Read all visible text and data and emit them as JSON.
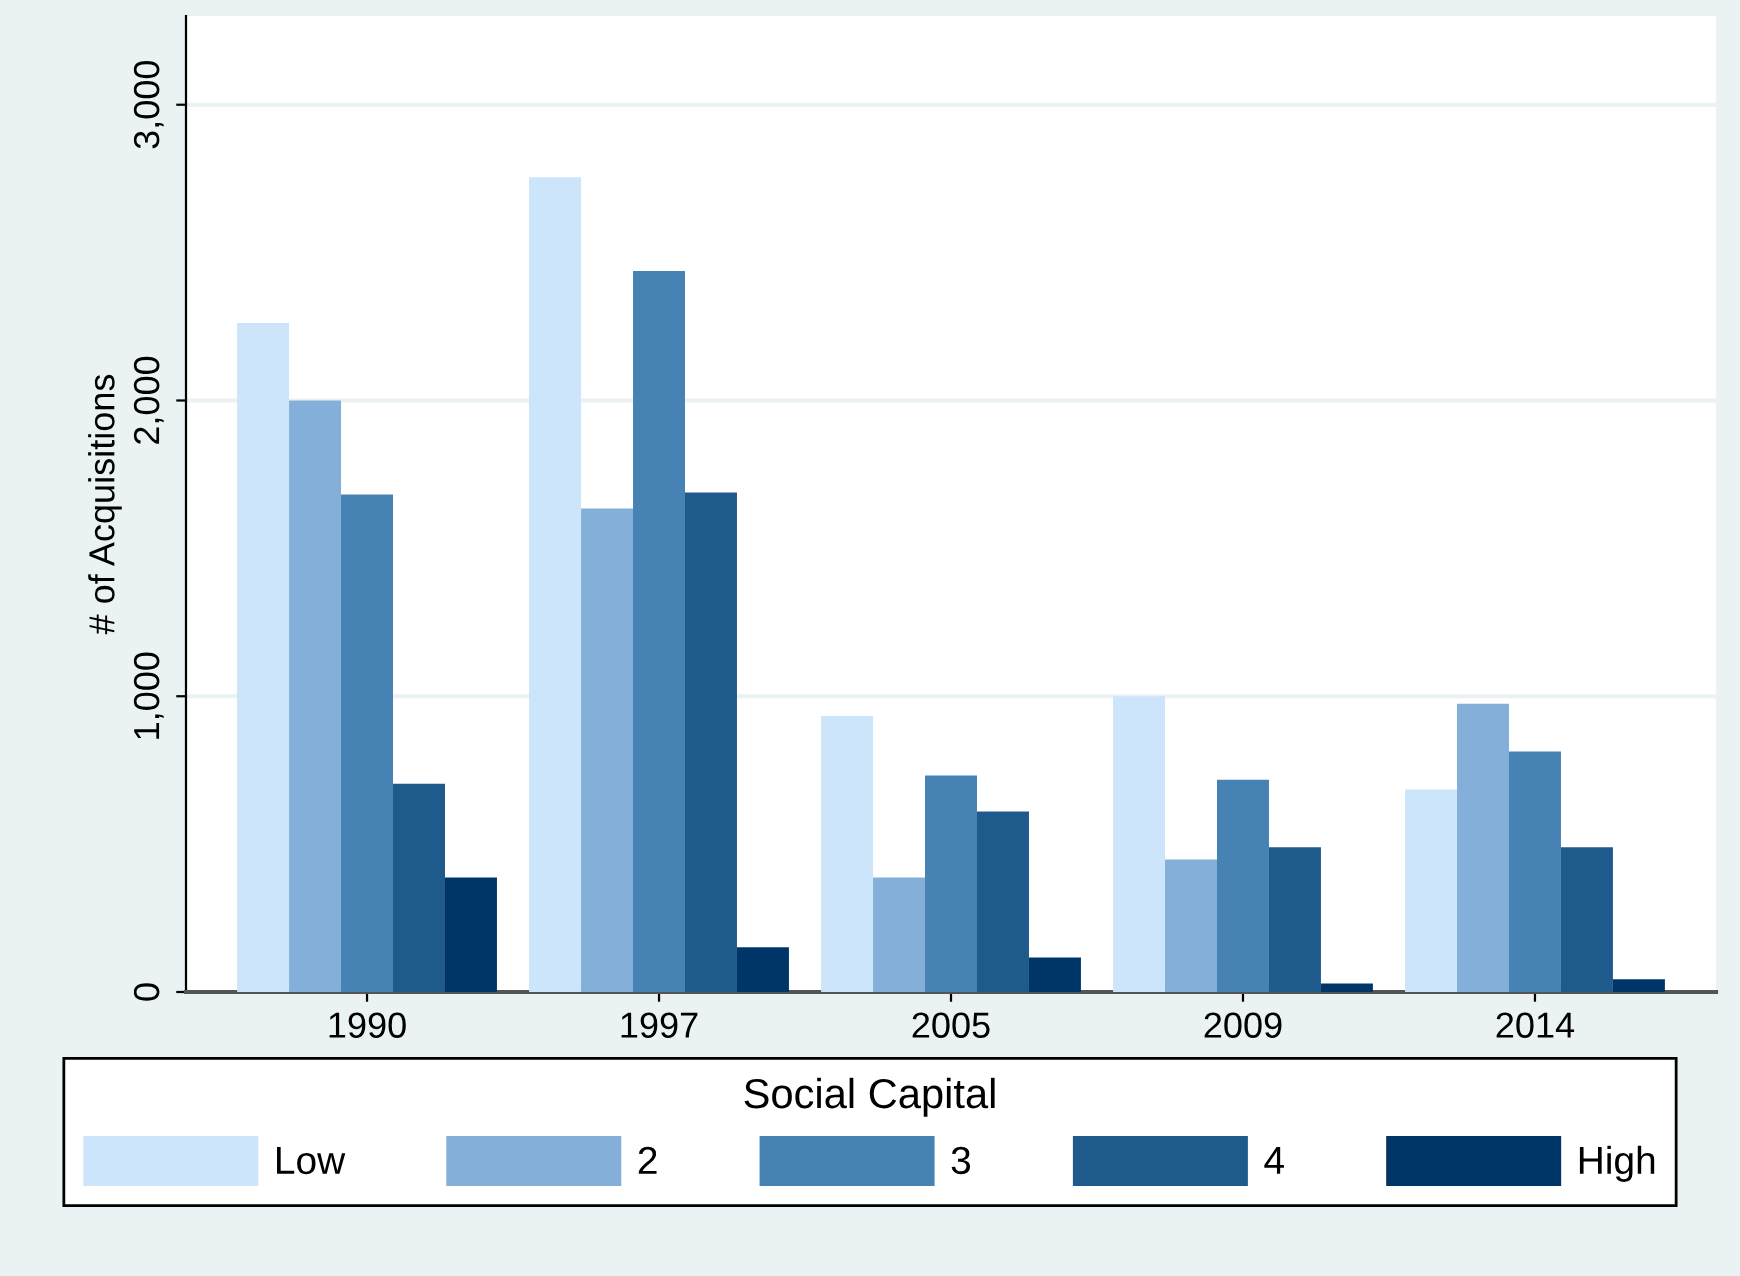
{
  "chart_data": {
    "type": "bar",
    "ylabel": "# of Acquisitions",
    "legend_title": "Social Capital",
    "categories": [
      "1990",
      "1997",
      "2005",
      "2009",
      "2014"
    ],
    "series": [
      {
        "name": "Low",
        "color": "#cce5fb",
        "values": [
          2262,
          2755,
          933,
          1000,
          685
        ]
      },
      {
        "name": "2",
        "color": "#84afd8",
        "values": [
          2000,
          1635,
          387,
          448,
          975
        ]
      },
      {
        "name": "3",
        "color": "#4682b4",
        "values": [
          1682,
          2438,
          732,
          718,
          813
        ]
      },
      {
        "name": "4",
        "color": "#1f5a8c",
        "values": [
          704,
          1689,
          610,
          489,
          489
        ]
      },
      {
        "name": "High",
        "color": "#003667",
        "values": [
          387,
          151,
          117,
          29,
          43
        ]
      }
    ],
    "ylim": [
      0,
      3300
    ],
    "yticks": [
      {
        "value": 0,
        "label": "0"
      },
      {
        "value": 1000,
        "label": "1,000"
      },
      {
        "value": 2000,
        "label": "2,000"
      },
      {
        "value": 3000,
        "label": "3,000"
      }
    ],
    "grid": "y",
    "legend": "bottom"
  }
}
